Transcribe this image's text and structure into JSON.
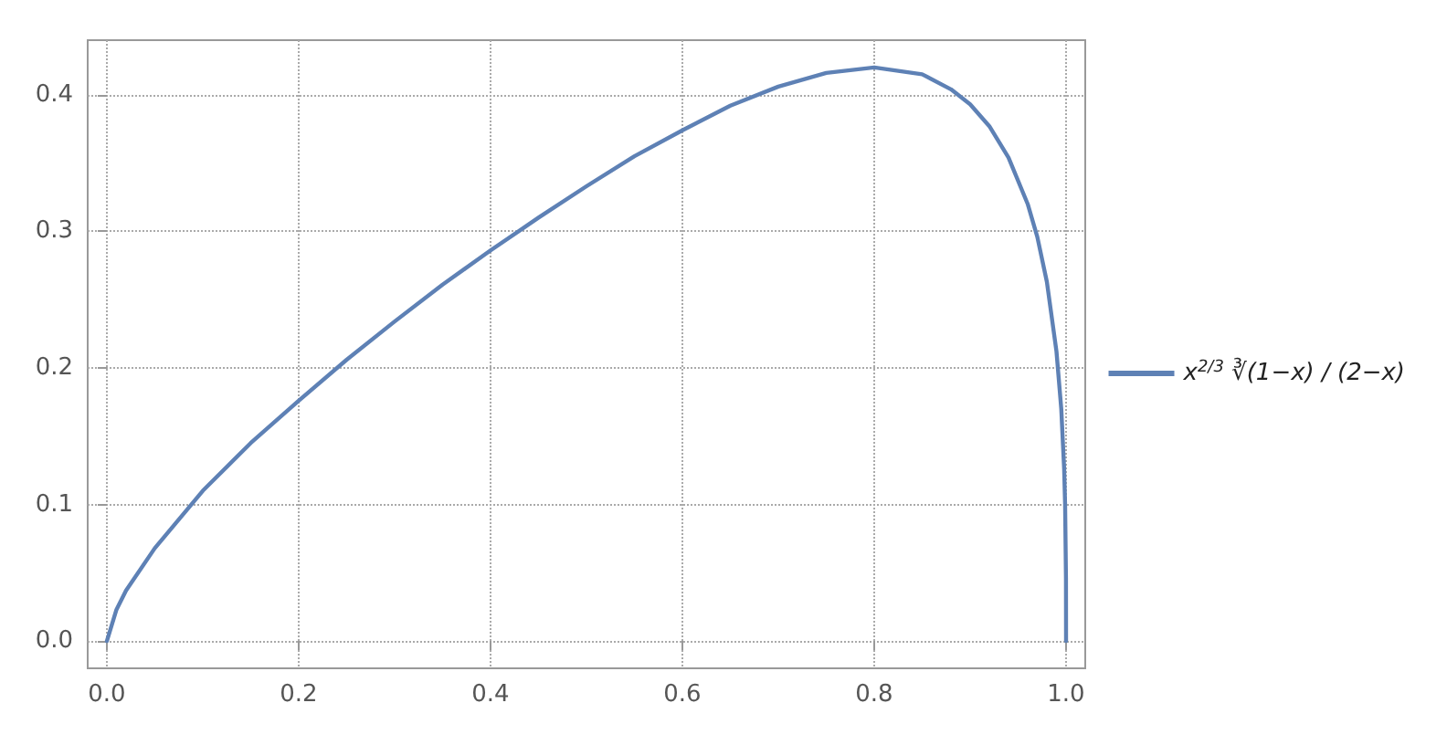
{
  "chart_data": {
    "type": "line",
    "x": [
      0,
      0.01,
      0.02,
      0.05,
      0.1,
      0.15,
      0.2,
      0.25,
      0.3,
      0.35,
      0.4,
      0.45,
      0.5,
      0.55,
      0.6,
      0.65,
      0.7,
      0.75,
      0.8,
      0.85,
      0.88,
      0.9,
      0.92,
      0.94,
      0.96,
      0.97,
      0.98,
      0.99,
      0.995,
      0.998,
      0.999,
      0.9999,
      1
    ],
    "series": [
      {
        "name": "x$^{2/3}$ ∛(1−x) / (2−x)",
        "color": "#5e81b5",
        "values": [
          0,
          0.023,
          0.037,
          0.068,
          0.11,
          0.145,
          0.176,
          0.206,
          0.234,
          0.261,
          0.286,
          0.31,
          0.333,
          0.355,
          0.374,
          0.392,
          0.406,
          0.416,
          0.42,
          0.415,
          0.404,
          0.393,
          0.377,
          0.354,
          0.32,
          0.296,
          0.263,
          0.212,
          0.17,
          0.126,
          0.1,
          0.046,
          0
        ]
      }
    ],
    "xlim": [
      -0.02,
      1.02
    ],
    "xticks": [
      {
        "value": 0,
        "label": "0.0"
      },
      0.2,
      0.4,
      0.6,
      0.8,
      {
        "value": 1,
        "label": "1.0"
      }
    ],
    "ylim": [
      -0.02,
      0.44
    ],
    "yticks": [
      {
        "value": 0,
        "label": "0.0"
      },
      0.1,
      0.2,
      0.3,
      0.4
    ],
    "grid": true,
    "legend": "right",
    "marker": "none",
    "line_style": "solid"
  }
}
